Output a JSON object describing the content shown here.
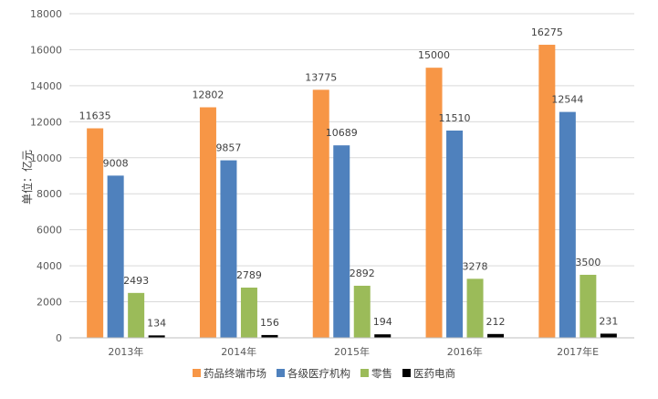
{
  "chart_data": {
    "type": "bar",
    "categories": [
      "2013年",
      "2014年",
      "2015年",
      "2016年",
      "2017年E"
    ],
    "series": [
      {
        "name": "药品终端市场",
        "color": "#F79646",
        "values": [
          11635,
          12802,
          13775,
          15000,
          16275
        ]
      },
      {
        "name": "各级医疗机构",
        "color": "#4F81BD",
        "values": [
          9008,
          9857,
          10689,
          11510,
          12544
        ]
      },
      {
        "name": "零售",
        "color": "#9BBB59",
        "values": [
          2493,
          2789,
          2892,
          3278,
          3500
        ]
      },
      {
        "name": "医药电商",
        "color": "#000000",
        "values": [
          134,
          156,
          194,
          212,
          231
        ]
      }
    ],
    "value_labels": [
      [
        "11635",
        "12802",
        "13775",
        "15000",
        "16275"
      ],
      [
        "9008",
        "9857",
        "10689",
        "11510",
        "12544"
      ],
      [
        "2493",
        "2789",
        "2892",
        "3278",
        "3500"
      ],
      [
        "134",
        "156",
        "194",
        "212",
        "231"
      ]
    ],
    "yticks": [
      0,
      2000,
      4000,
      6000,
      8000,
      10000,
      12000,
      14000,
      16000,
      18000
    ],
    "ylim": [
      0,
      18000
    ],
    "ylabel": "单位：亿元",
    "xlabel": "",
    "grid": true,
    "legend": "bottom"
  }
}
